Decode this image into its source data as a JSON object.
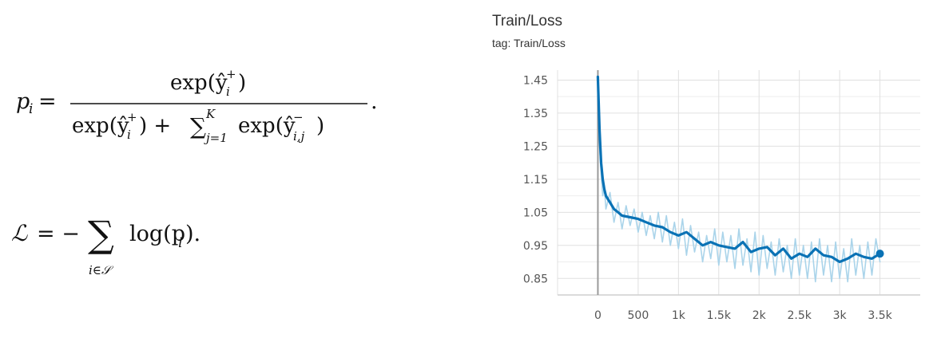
{
  "formulas": {
    "eq1": {
      "lhs": "p",
      "lhs_sub": "i",
      "numerator": "exp(ŷ",
      "numerator_sup": "+",
      "numerator_sub": "i",
      "numerator_close": ")",
      "den_exp": "exp(ŷ",
      "den_sup": "+",
      "den_sub": "i",
      "den_plus": ") +",
      "sum_symbol": "∑",
      "sum_top": "K",
      "sum_bottom": "j=1",
      "den_exp2": "exp(ŷ",
      "den2_sup": "−",
      "den2_sub": "i,j",
      "den2_close": ")",
      "trailing": "."
    },
    "eq2": {
      "lhs": "ℒ",
      "equals": "= −",
      "sum_symbol": "∑",
      "sum_bottom": "i∈𝒮",
      "term": "log(p",
      "term_sub": "i",
      "term_close": ")."
    }
  },
  "chart_header": {
    "title": "Train/Loss",
    "subtitle": "tag: Train/Loss"
  },
  "chart_data": {
    "type": "line",
    "title": "Train/Loss",
    "subtitle": "tag: Train/Loss",
    "xlabel": "",
    "ylabel": "",
    "xlim": [
      -500,
      4000
    ],
    "ylim": [
      0.8,
      1.48
    ],
    "x_ticks": [
      0,
      500,
      1000,
      1500,
      2000,
      2500,
      3000,
      3500
    ],
    "x_tick_labels": [
      "0",
      "500",
      "1k",
      "1.5k",
      "2k",
      "2.5k",
      "3k",
      "3.5k"
    ],
    "y_ticks": [
      0.85,
      0.95,
      1.05,
      1.15,
      1.25,
      1.35,
      1.45
    ],
    "y_tick_labels": [
      "0.85",
      "0.95",
      "1.05",
      "1.15",
      "1.25",
      "1.35",
      "1.45"
    ],
    "grid": true,
    "colors": {
      "smoothed": "#0a72b5",
      "raw": "#aad4ea"
    },
    "series": [
      {
        "smoothing": "smoothed",
        "x": [
          0,
          20,
          40,
          60,
          80,
          100,
          150,
          200,
          250,
          300,
          400,
          500,
          600,
          700,
          800,
          900,
          1000,
          1100,
          1200,
          1300,
          1400,
          1500,
          1600,
          1700,
          1800,
          1900,
          2000,
          2100,
          2200,
          2300,
          2400,
          2500,
          2600,
          2700,
          2800,
          2900,
          3000,
          3100,
          3200,
          3300,
          3400,
          3500
        ],
        "y": [
          1.46,
          1.3,
          1.2,
          1.15,
          1.12,
          1.1,
          1.08,
          1.06,
          1.05,
          1.04,
          1.035,
          1.03,
          1.02,
          1.01,
          1.005,
          0.99,
          0.98,
          0.99,
          0.97,
          0.95,
          0.96,
          0.95,
          0.945,
          0.94,
          0.96,
          0.93,
          0.94,
          0.945,
          0.92,
          0.94,
          0.91,
          0.925,
          0.915,
          0.94,
          0.92,
          0.915,
          0.9,
          0.91,
          0.925,
          0.915,
          0.91,
          0.925
        ]
      },
      {
        "smoothing": "raw",
        "x": [
          0,
          20,
          40,
          60,
          80,
          100,
          150,
          200,
          250,
          300,
          350,
          400,
          450,
          500,
          550,
          600,
          650,
          700,
          750,
          800,
          850,
          900,
          950,
          1000,
          1050,
          1100,
          1150,
          1200,
          1250,
          1300,
          1350,
          1400,
          1450,
          1500,
          1550,
          1600,
          1650,
          1700,
          1750,
          1800,
          1850,
          1900,
          1950,
          2000,
          2050,
          2100,
          2150,
          2200,
          2250,
          2300,
          2350,
          2400,
          2450,
          2500,
          2550,
          2600,
          2650,
          2700,
          2750,
          2800,
          2850,
          2900,
          2950,
          3000,
          3050,
          3100,
          3150,
          3200,
          3250,
          3300,
          3350,
          3400,
          3450,
          3500
        ],
        "y": [
          1.46,
          1.25,
          1.17,
          1.1,
          1.13,
          1.06,
          1.11,
          1.02,
          1.08,
          1.0,
          1.07,
          1.01,
          1.06,
          0.99,
          1.05,
          0.98,
          1.04,
          0.97,
          1.05,
          0.96,
          1.04,
          0.95,
          1.02,
          0.94,
          1.03,
          0.92,
          1.01,
          0.93,
          0.99,
          0.9,
          0.98,
          0.91,
          1.0,
          0.89,
          0.99,
          0.9,
          0.98,
          0.88,
          1.0,
          0.89,
          0.97,
          0.87,
          0.99,
          0.86,
          0.98,
          0.88,
          0.96,
          0.86,
          0.97,
          0.87,
          0.95,
          0.85,
          0.97,
          0.86,
          0.95,
          0.85,
          0.96,
          0.84,
          0.97,
          0.86,
          0.95,
          0.84,
          0.96,
          0.85,
          0.94,
          0.84,
          0.97,
          0.86,
          0.95,
          0.85,
          0.96,
          0.86,
          0.97,
          0.9
        ]
      }
    ]
  }
}
